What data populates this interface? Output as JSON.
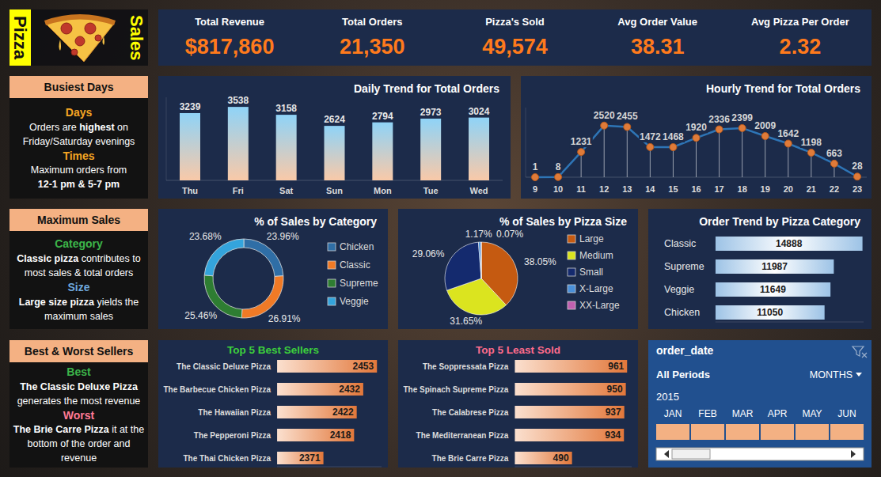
{
  "header": {
    "left": "Pizza",
    "right": "Sales"
  },
  "kpis": [
    {
      "label": "Total Revenue",
      "value": "$817,860"
    },
    {
      "label": "Total Orders",
      "value": "21,350"
    },
    {
      "label": "Pizza's Sold",
      "value": "49,574"
    },
    {
      "label": "Avg Order Value",
      "value": "38.31"
    },
    {
      "label": "Avg Pizza Per Order",
      "value": "2.32"
    }
  ],
  "insights": [
    {
      "title": "Busiest Days",
      "sections": [
        {
          "heading": "Days",
          "color": "#f5a623",
          "lines": [
            [
              {
                "t": "Orders are "
              },
              {
                "t": "highest",
                "b": true
              },
              {
                "t": " on"
              }
            ],
            [
              {
                "t": "Friday/Saturday evenings"
              }
            ]
          ]
        },
        {
          "heading": "Times",
          "color": "#f5a623",
          "lines": [
            [
              {
                "t": "Maximum orders from"
              }
            ],
            [
              {
                "t": "12-1 pm & 5-7 pm",
                "b": true
              }
            ]
          ]
        }
      ]
    },
    {
      "title": "Maximum Sales",
      "sections": [
        {
          "heading": "Category",
          "color": "#3cb54a",
          "lines": [
            [
              {
                "t": "Classic pizza",
                "b": true
              },
              {
                "t": " contributes to"
              }
            ],
            [
              {
                "t": "most sales & total orders"
              }
            ]
          ]
        },
        {
          "heading": "Size",
          "color": "#6fa8dc",
          "lines": [
            [
              {
                "t": "Large size pizza",
                "b": true
              },
              {
                "t": " yields the"
              }
            ],
            [
              {
                "t": "maximum sales"
              }
            ]
          ]
        }
      ]
    },
    {
      "title": "Best & Worst Sellers",
      "sections": [
        {
          "heading": "Best",
          "color": "#3cb54a",
          "lines": [
            [
              {
                "t": "The Classic Deluxe Pizza",
                "b": true
              }
            ],
            [
              {
                "t": "generates the most revenue"
              }
            ]
          ]
        },
        {
          "heading": "Worst",
          "color": "#ff7a95",
          "lines": [
            [
              {
                "t": "The Brie Carre Pizza",
                "b": true
              },
              {
                "t": " it at the"
              }
            ],
            [
              {
                "t": "bottom of the order and"
              }
            ],
            [
              {
                "t": "revenue"
              }
            ]
          ]
        }
      ]
    }
  ],
  "chart_data": [
    {
      "type": "bar",
      "title": "Daily Trend for Total Orders",
      "categories": [
        "Thu",
        "Fri",
        "Sat",
        "Sun",
        "Mon",
        "Tue",
        "Wed"
      ],
      "values": [
        3239,
        3538,
        3158,
        2624,
        2794,
        2973,
        3024
      ],
      "color": "#8fd3f7",
      "ylim": [
        0,
        4000
      ],
      "data_labels": true,
      "tick_labels": "x",
      "grid": false
    },
    {
      "type": "line",
      "title": "Hourly Trend for Total Orders",
      "categories": [
        "9",
        "10",
        "11",
        "12",
        "13",
        "14",
        "15",
        "16",
        "17",
        "18",
        "19",
        "20",
        "21",
        "22",
        "23"
      ],
      "values": [
        1,
        8,
        1231,
        2520,
        2455,
        1472,
        1468,
        1920,
        2336,
        2399,
        2009,
        1642,
        1198,
        663,
        28
      ],
      "color": "#2e75b6",
      "marker": "circle",
      "ylim": [
        0,
        3400
      ],
      "data_labels": true,
      "tick_labels": "x",
      "grid": false
    },
    {
      "type": "donut",
      "title": "% of Sales by Category",
      "categories": [
        "Chicken",
        "Classic",
        "Supreme",
        "Veggie"
      ],
      "values": [
        23.96,
        26.91,
        25.46,
        23.68
      ],
      "value_labels": [
        "23.96%",
        "26.91%",
        "25.46%",
        "23.68%"
      ],
      "colors": [
        "#2f6ea6",
        "#f07a26",
        "#2e7d32",
        "#34a4dc"
      ],
      "legend": "right",
      "data_labels": true
    },
    {
      "type": "pie",
      "title": "% of Sales by Pizza Size",
      "categories": [
        "Large",
        "Medium",
        "Small",
        "X-Large",
        "XX-Large"
      ],
      "values": [
        38.05,
        31.65,
        29.06,
        1.17,
        0.07
      ],
      "value_labels": [
        "38.05%",
        "31.65%",
        "29.06%",
        "1.17%",
        "0.07%"
      ],
      "colors": [
        "#c55a11",
        "#dbe41f",
        "#142a6e",
        "#4a90d9",
        "#c060b0"
      ],
      "legend": "right",
      "data_labels": true
    },
    {
      "type": "bar",
      "orientation": "horizontal",
      "title": "Order Trend by Pizza Category",
      "categories": [
        "Classic",
        "Supreme",
        "Veggie",
        "Chicken"
      ],
      "values": [
        14888,
        11987,
        11649,
        11050
      ],
      "color": "#9dc3e6",
      "xlim": [
        0,
        15000
      ],
      "data_labels": true,
      "tick_labels": "y",
      "grid": false
    },
    {
      "type": "bar",
      "orientation": "horizontal",
      "title": "Top 5 Best Sellers",
      "categories": [
        "The Classic Deluxe Pizza",
        "The Barbecue Chicken Pizza",
        "The Hawaiian Pizza",
        "The Pepperoni Pizza",
        "The Thai Chicken Pizza"
      ],
      "values": [
        2453,
        2432,
        2422,
        2418,
        2371
      ],
      "color": "#e2773a",
      "xlim": [
        2300,
        2460
      ],
      "data_labels": true,
      "tick_labels": "y",
      "grid": false
    },
    {
      "type": "bar",
      "orientation": "horizontal",
      "title": "Top 5 Least Sold",
      "categories": [
        "The Soppressata Pizza",
        "The Spinach Supreme Pizza",
        "The Calabrese Pizza",
        "The Mediterranean Pizza",
        "The Brie Carre Pizza"
      ],
      "values": [
        961,
        950,
        937,
        934,
        490
      ],
      "color": "#e2773a",
      "xlim": [
        0,
        1000
      ],
      "data_labels": true,
      "tick_labels": "y",
      "grid": false
    }
  ],
  "slicer": {
    "title": "order_date",
    "period": "All Periods",
    "unit": "MONTHS",
    "year": "2015",
    "months": [
      "JAN",
      "FEB",
      "MAR",
      "APR",
      "MAY",
      "JUN"
    ]
  }
}
